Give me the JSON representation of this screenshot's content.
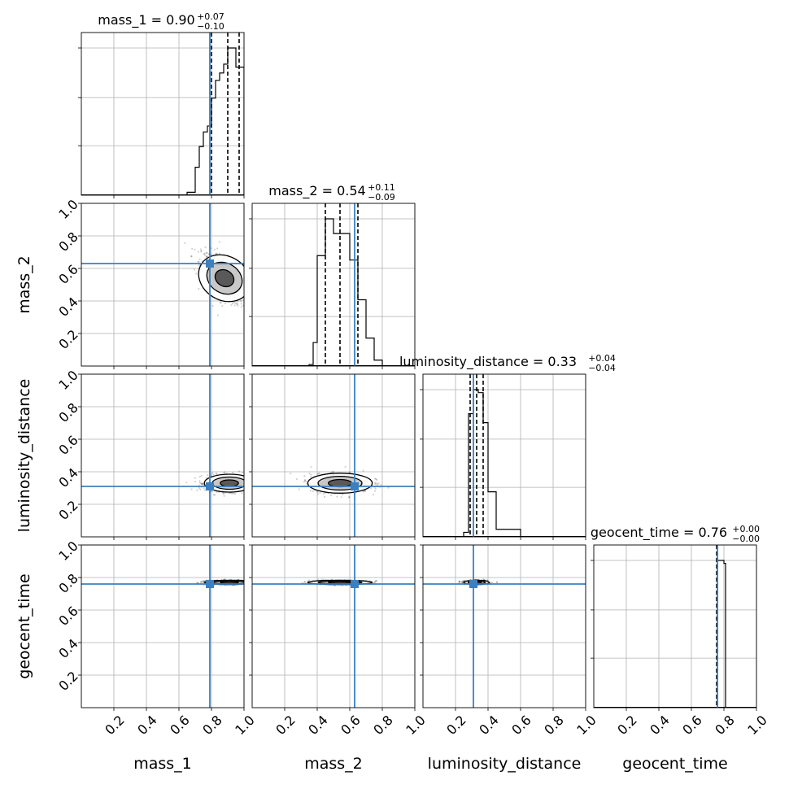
{
  "chart_data": {
    "type": "corner",
    "parameters": [
      "mass_1",
      "mass_2",
      "luminosity_distance",
      "geocent_time"
    ],
    "axis_range": [
      0,
      1
    ],
    "tick_values": [
      0.2,
      0.4,
      0.6,
      0.8,
      1.0
    ],
    "tick_labels": [
      "0.2",
      "0.4",
      "0.6",
      "0.8",
      "1.0"
    ],
    "grid": true,
    "colors": {
      "truth": "#3b80c0",
      "hist": "#000000",
      "contour_fill": "#4d4d4d"
    },
    "truths": {
      "mass_1": 0.79,
      "mass_2": 0.63,
      "luminosity_distance": 0.31,
      "geocent_time": 0.76
    },
    "titles": [
      {
        "param": "mass_1",
        "text": "mass_1 = 0.90",
        "upper": "+0.07",
        "lower": "−0.10"
      },
      {
        "param": "mass_2",
        "text": "mass_2 = 0.54",
        "upper": "+0.11",
        "lower": "−0.09"
      },
      {
        "param": "luminosity_distance",
        "text": "luminosity_distance = 0.33",
        "upper": "+0.04",
        "lower": "−0.04"
      },
      {
        "param": "geocent_time",
        "text": "geocent_time = 0.76",
        "upper": "+0.00",
        "lower": "−0.00"
      }
    ],
    "quantiles": {
      "mass_1": [
        0.8,
        0.9,
        0.97
      ],
      "mass_2": [
        0.45,
        0.54,
        0.65
      ],
      "luminosity_distance": [
        0.29,
        0.33,
        0.37
      ],
      "geocent_time": [
        0.755,
        0.76,
        0.76
      ]
    },
    "histograms": {
      "mass_1": {
        "bins": [
          0.6,
          0.65,
          0.7,
          0.725,
          0.75,
          0.775,
          0.8,
          0.825,
          0.85,
          0.875,
          0.9,
          0.925,
          0.95,
          0.975,
          1.0
        ],
        "counts": [
          0.0,
          0.02,
          0.19,
          0.33,
          0.43,
          0.47,
          0.66,
          0.78,
          0.83,
          0.89,
          1.0,
          1.0,
          0.87,
          0.87
        ]
      },
      "mass_2": {
        "bins": [
          0.3,
          0.35,
          0.375,
          0.4,
          0.45,
          0.5,
          0.55,
          0.6,
          0.65,
          0.7,
          0.75,
          0.8,
          0.9
        ],
        "counts": [
          0.0,
          0.01,
          0.16,
          0.75,
          1.0,
          0.9,
          0.9,
          0.72,
          0.45,
          0.19,
          0.04,
          0.0
        ]
      },
      "luminosity_distance": {
        "bins": [
          0.1,
          0.25,
          0.28,
          0.31,
          0.34,
          0.37,
          0.4,
          0.45,
          0.6
        ],
        "counts": [
          0.0,
          0.03,
          0.82,
          0.98,
          0.96,
          0.76,
          0.3,
          0.05
        ]
      },
      "geocent_time": {
        "bins": [
          0.0,
          0.74,
          0.76,
          0.8,
          0.81
        ],
        "counts": [
          0.0,
          0.0,
          1.0,
          0.98
        ]
      }
    },
    "joint_posteriors": [
      {
        "x": "mass_1",
        "y": "mass_2",
        "center": [
          0.88,
          0.54
        ],
        "spread": [
          0.07,
          0.075
        ],
        "corr": -0.55
      },
      {
        "x": "mass_1",
        "y": "luminosity_distance",
        "center": [
          0.91,
          0.33
        ],
        "spread": [
          0.07,
          0.025
        ],
        "corr": 0.0
      },
      {
        "x": "mass_2",
        "y": "luminosity_distance",
        "center": [
          0.54,
          0.33
        ],
        "spread": [
          0.09,
          0.028
        ],
        "corr": 0.0
      },
      {
        "x": "mass_1",
        "y": "geocent_time",
        "center": [
          0.91,
          0.77
        ],
        "spread": [
          0.07,
          0.006
        ],
        "corr": 0.0
      },
      {
        "x": "mass_2",
        "y": "geocent_time",
        "center": [
          0.54,
          0.77
        ],
        "spread": [
          0.09,
          0.006
        ],
        "corr": 0.0
      },
      {
        "x": "luminosity_distance",
        "y": "geocent_time",
        "center": [
          0.33,
          0.77
        ],
        "spread": [
          0.035,
          0.006
        ],
        "corr": 0.0
      }
    ]
  }
}
